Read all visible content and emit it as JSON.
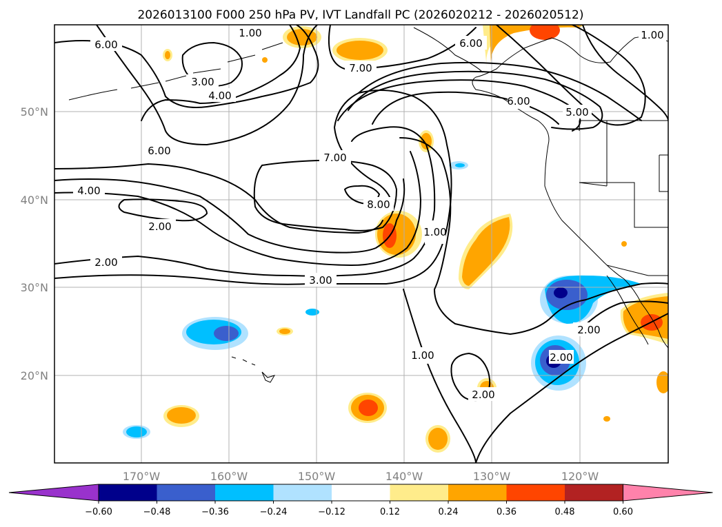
{
  "title": "2026013100 F000 250 hPa PV, IVT Landfall PC (2026020212 - 2026020512)",
  "lon_labels": [
    "170°W",
    "160°W",
    "150°W",
    "140°W",
    "130°W",
    "120°W"
  ],
  "lat_labels": [
    "50°N",
    "40°N",
    "30°N",
    "20°N"
  ],
  "colorbar": {
    "tick_labels": [
      "−0.60",
      "−0.48",
      "−0.36",
      "−0.24",
      "−0.12",
      "0.12",
      "0.24",
      "0.36",
      "0.48",
      "0.60"
    ],
    "colors": [
      "#9932cc",
      "#00008b",
      "#3a5fcd",
      "#00bfff",
      "#b0e2ff",
      "#ffffff",
      "#ffec8b",
      "#ffa500",
      "#ff4500",
      "#b22222",
      "#ff82ab"
    ]
  },
  "contour_labels": [
    "6.00",
    "6.00",
    "3.00",
    "4.00",
    "7.00",
    "6.00",
    "7.00",
    "4.00",
    "2.00",
    "8.00",
    "1.00",
    "2.00",
    "3.00",
    "1.00",
    "2.00",
    "2.00",
    "2.00",
    "1.00",
    "1.00",
    "6.00",
    "5.00"
  ],
  "colors": {
    "contour": "#000000",
    "grid": "#b0b0b0",
    "tick_text": "#808080"
  }
}
